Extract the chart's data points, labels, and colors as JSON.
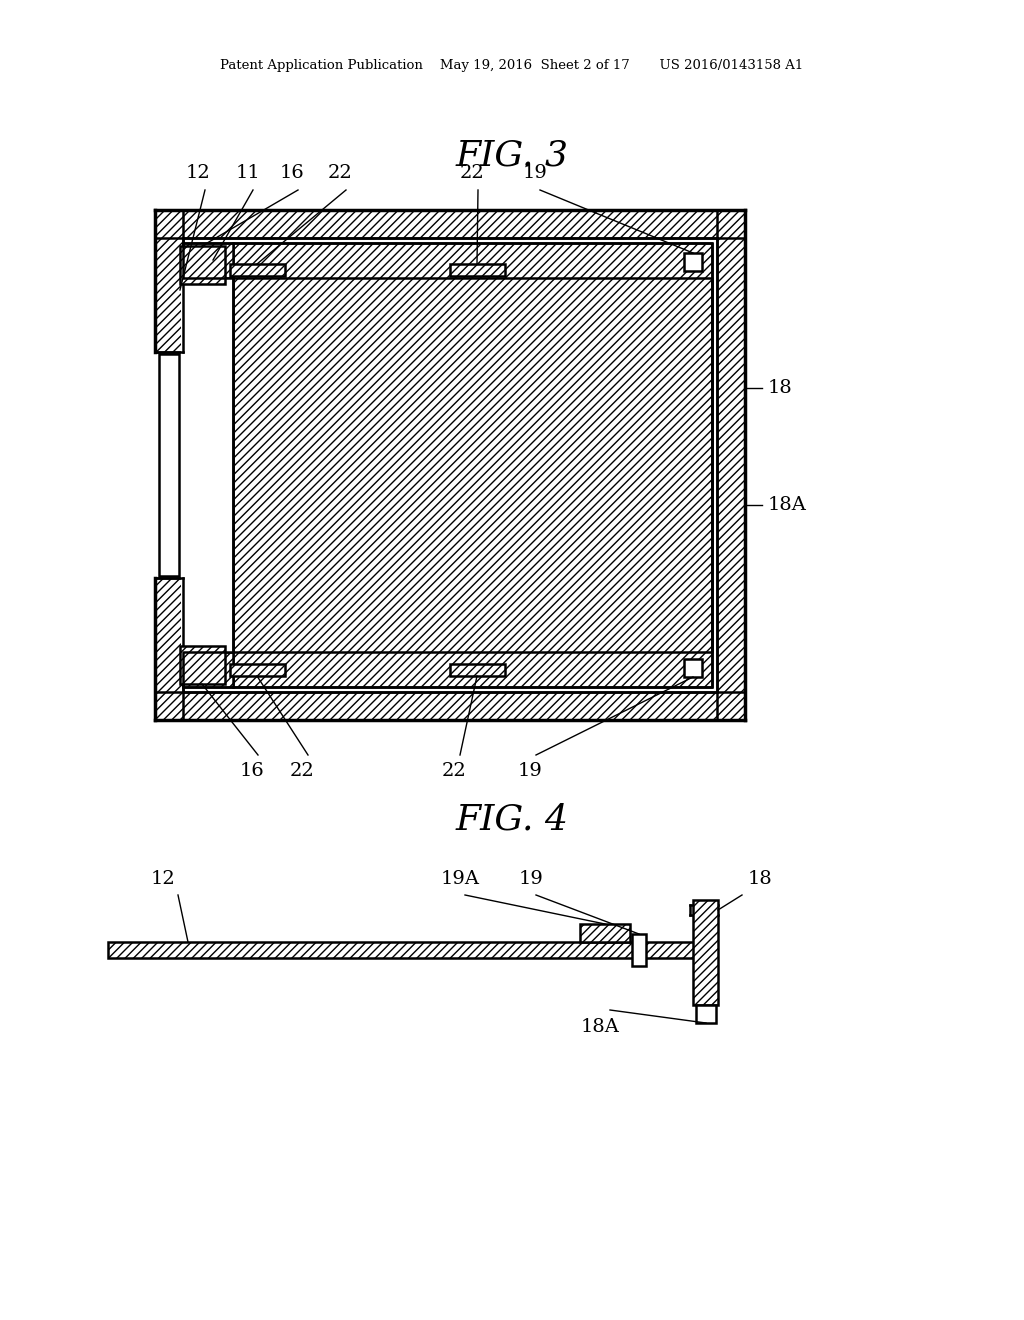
{
  "bg_color": "#ffffff",
  "line_color": "#000000",
  "header_text": "Patent Application Publication    May 19, 2016  Sheet 2 of 17       US 2016/0143158 A1",
  "fig3_title": "FIG. 3",
  "fig4_title": "FIG. 4"
}
